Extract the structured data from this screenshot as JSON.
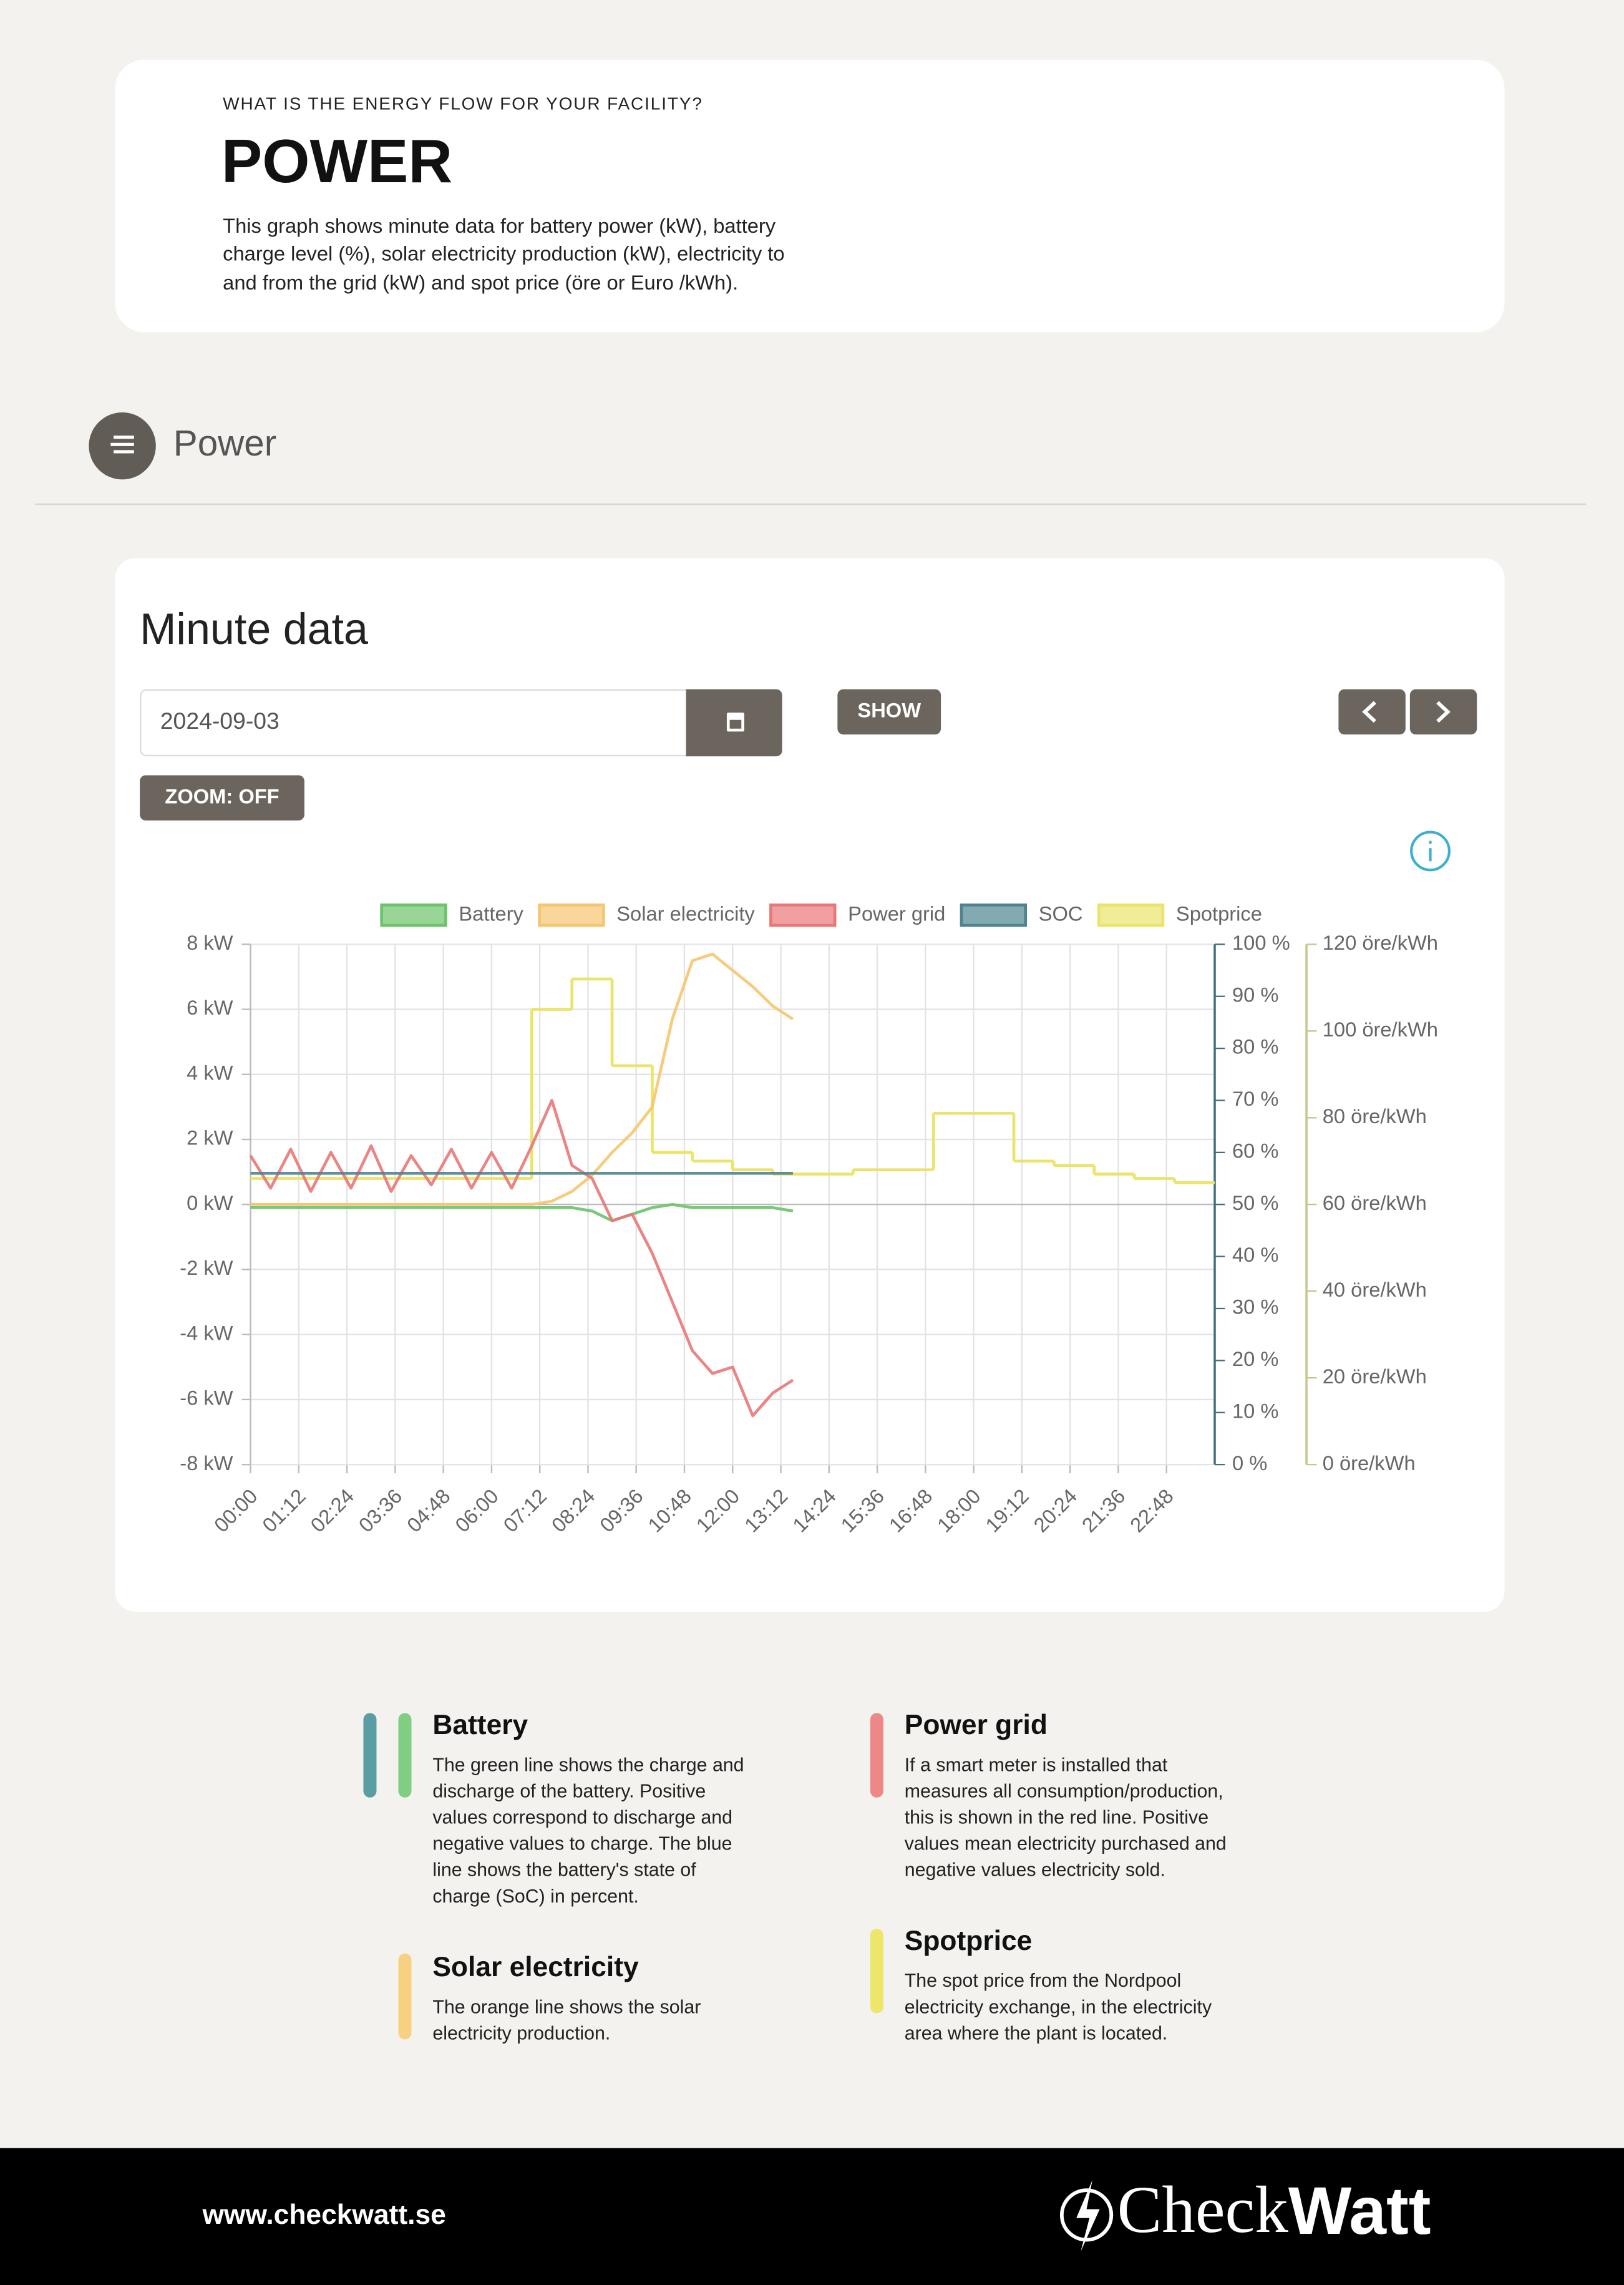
{
  "header": {
    "kicker": "WHAT IS THE ENERGY FLOW FOR YOUR FACILITY?",
    "title": "POWER",
    "description": [
      "This graph shows minute data for battery power (kW), battery",
      "charge level (%), solar electricity production (kW), electricity to",
      "and from the grid (kW) and spot price (öre or Euro /kWh)."
    ]
  },
  "section": {
    "title": "Power"
  },
  "panel": {
    "title": "Minute data",
    "date": "2024-09-03",
    "show_button": "SHOW",
    "zoom_button": "ZOOM: OFF"
  },
  "chart_data": {
    "type": "line",
    "x": [
      "00:00",
      "00:30",
      "01:00",
      "01:30",
      "02:00",
      "02:30",
      "03:00",
      "03:30",
      "04:00",
      "04:30",
      "05:00",
      "05:30",
      "06:00",
      "06:30",
      "07:00",
      "07:30",
      "08:00",
      "08:30",
      "09:00",
      "09:30",
      "10:00",
      "10:30",
      "11:00",
      "11:30",
      "12:00",
      "12:30",
      "13:00",
      "13:30",
      "14:00",
      "14:30",
      "15:00",
      "15:30",
      "16:00",
      "16:30",
      "17:00",
      "17:30",
      "18:00",
      "18:30",
      "19:00",
      "19:30",
      "20:00",
      "20:30",
      "21:00",
      "21:30",
      "22:00",
      "22:30",
      "23:00",
      "23:30"
    ],
    "xlim": [
      "00:00",
      "24:00"
    ],
    "xticks": [
      "00:00",
      "01:12",
      "02:24",
      "03:36",
      "04:48",
      "06:00",
      "07:12",
      "08:24",
      "09:36",
      "10:48",
      "12:00",
      "13:12",
      "14:24",
      "15:36",
      "16:48",
      "18:00",
      "19:12",
      "20:24",
      "21:36",
      "22:48"
    ],
    "ylim": [
      -8,
      8
    ],
    "yticks": [
      {
        "value": -8,
        "label": "-8 kW"
      },
      {
        "value": -6,
        "label": "-6 kW"
      },
      {
        "value": -4,
        "label": "-4 kW"
      },
      {
        "value": -2,
        "label": "-2 kW"
      },
      {
        "value": 0,
        "label": "0 kW"
      },
      {
        "value": 2,
        "label": "2 kW"
      },
      {
        "value": 4,
        "label": "4 kW"
      },
      {
        "value": 6,
        "label": "6 kW"
      },
      {
        "value": 8,
        "label": "8 kW"
      }
    ],
    "y2lim": [
      0,
      100
    ],
    "y2ticks": [
      {
        "value": 0,
        "label": "0 %"
      },
      {
        "value": 10,
        "label": "10 %"
      },
      {
        "value": 20,
        "label": "20 %"
      },
      {
        "value": 30,
        "label": "30 %"
      },
      {
        "value": 40,
        "label": "40 %"
      },
      {
        "value": 50,
        "label": "50 %"
      },
      {
        "value": 60,
        "label": "60 %"
      },
      {
        "value": 70,
        "label": "70 %"
      },
      {
        "value": 80,
        "label": "80 %"
      },
      {
        "value": 90,
        "label": "90 %"
      },
      {
        "value": 100,
        "label": "100 %"
      }
    ],
    "y3lim": [
      0,
      120
    ],
    "y3ticks": [
      {
        "value": 0,
        "label": "0 öre/kWh"
      },
      {
        "value": 20,
        "label": "20 öre/kWh"
      },
      {
        "value": 40,
        "label": "40 öre/kWh"
      },
      {
        "value": 60,
        "label": "60 öre/kWh"
      },
      {
        "value": 80,
        "label": "80 öre/kWh"
      },
      {
        "value": 100,
        "label": "100 öre/kWh"
      },
      {
        "value": 120,
        "label": "120 öre/kWh"
      }
    ],
    "grid": true,
    "legend": "top",
    "series": [
      {
        "name": "Battery",
        "color": "#6cc36a",
        "axis": "y",
        "values": [
          -0.1,
          -0.1,
          -0.1,
          -0.1,
          -0.1,
          -0.1,
          -0.1,
          -0.1,
          -0.1,
          -0.1,
          -0.1,
          -0.1,
          -0.1,
          -0.1,
          -0.1,
          -0.1,
          -0.1,
          -0.2,
          -0.5,
          -0.3,
          -0.1,
          0.0,
          -0.1,
          -0.1,
          -0.1,
          -0.1,
          -0.1,
          -0.2,
          null,
          null,
          null,
          null,
          null,
          null,
          null,
          null,
          null,
          null,
          null,
          null,
          null,
          null,
          null,
          null,
          null,
          null,
          null,
          null
        ]
      },
      {
        "name": "Solar electricity",
        "color": "#f6c56f",
        "axis": "y",
        "values": [
          0,
          0,
          0,
          0,
          0,
          0,
          0,
          0,
          0,
          0,
          0,
          0,
          0,
          0,
          0,
          0.1,
          0.4,
          0.9,
          1.6,
          2.2,
          3.0,
          5.7,
          7.5,
          7.7,
          7.2,
          6.7,
          6.1,
          5.7,
          null,
          null,
          null,
          null,
          null,
          null,
          null,
          null,
          null,
          null,
          null,
          null,
          null,
          null,
          null,
          null,
          null,
          null,
          null,
          null
        ]
      },
      {
        "name": "Power grid",
        "color": "#e97777",
        "axis": "y",
        "values": [
          1.5,
          0.5,
          1.7,
          0.4,
          1.6,
          0.5,
          1.8,
          0.4,
          1.5,
          0.6,
          1.7,
          0.5,
          1.6,
          0.5,
          1.8,
          3.2,
          1.2,
          0.8,
          -0.5,
          -0.3,
          -1.5,
          -3.0,
          -4.5,
          -5.2,
          -5.0,
          -6.5,
          -5.8,
          -5.4,
          null,
          null,
          null,
          null,
          null,
          null,
          null,
          null,
          null,
          null,
          null,
          null,
          null,
          null,
          null,
          null,
          null,
          null,
          null,
          null
        ]
      },
      {
        "name": "SOC",
        "color": "#4e8490",
        "axis": "y2",
        "values": [
          56,
          56,
          56,
          56,
          56,
          56,
          56,
          56,
          56,
          56,
          56,
          56,
          56,
          56,
          56,
          56,
          56,
          56,
          56,
          56,
          56,
          56,
          56,
          56,
          56,
          56,
          56,
          56,
          null,
          null,
          null,
          null,
          null,
          null,
          null,
          null,
          null,
          null,
          null,
          null,
          null,
          null,
          null,
          null,
          null,
          null,
          null,
          null
        ]
      },
      {
        "name": "Spotprice",
        "color": "#ebe46a",
        "axis": "y3",
        "step": true,
        "values": [
          66,
          66,
          66,
          66,
          66,
          66,
          66,
          66,
          66,
          66,
          66,
          66,
          66,
          66,
          105,
          105,
          112,
          112,
          92,
          92,
          72,
          72,
          70,
          70,
          68,
          68,
          67,
          67,
          67,
          67,
          68,
          68,
          68,
          68,
          81,
          81,
          81,
          81,
          70,
          70,
          69,
          69,
          67,
          67,
          66,
          66,
          65,
          65
        ]
      }
    ]
  },
  "explanations": [
    {
      "title": "Battery",
      "lines": [
        "The green line shows the charge and",
        "discharge of the battery. Positive",
        "values correspond to discharge and",
        "negative values to charge. The blue",
        "line shows the battery's state of",
        "charge (SoC) in percent."
      ]
    },
    {
      "title": "Power grid",
      "lines": [
        "If a smart meter is installed that",
        "measures all consumption/production,",
        "this is shown in the red line. Positive",
        "values mean electricity purchased and",
        "negative values electricity sold."
      ]
    },
    {
      "title": "Solar electricity",
      "lines": [
        "The orange line shows the solar",
        "electricity production."
      ]
    },
    {
      "title": "Spotprice",
      "lines": [
        "The spot price from the Nordpool",
        "electricity exchange, in the electricity",
        "area where the plant is located."
      ]
    }
  ],
  "footer": {
    "url": "www.checkwatt.se",
    "logo_light": "Check",
    "logo_bold": "Watt"
  }
}
